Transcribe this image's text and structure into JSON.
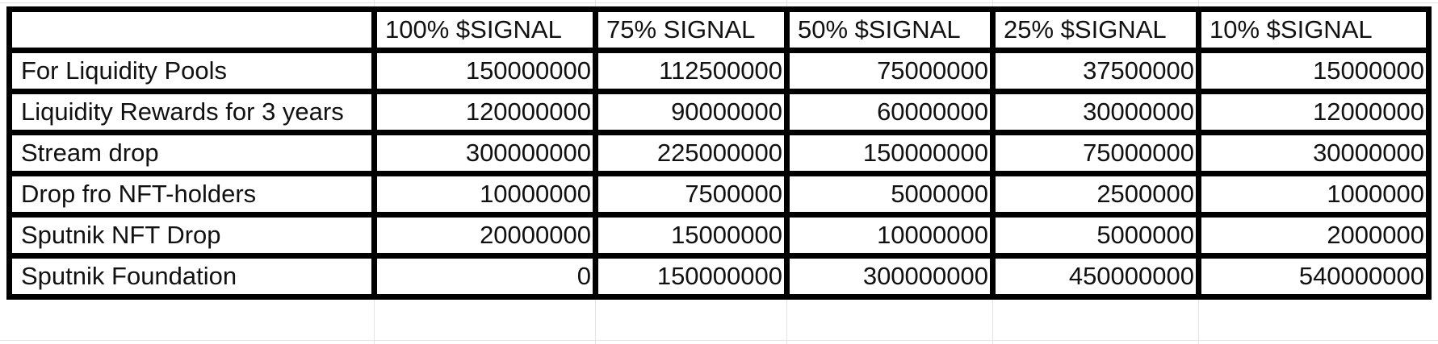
{
  "spreadsheet": {
    "column_headers": [
      "",
      "100% $SIGNAL",
      "75% SIGNAL",
      "50% $SIGNAL",
      "25% $SIGNAL",
      "10% $SIGNAL"
    ],
    "rows": [
      {
        "label": "For Liquidity Pools",
        "values": [
          "150000000",
          "112500000",
          "75000000",
          "37500000",
          "15000000"
        ]
      },
      {
        "label": "Liquidity Rewards for 3 years",
        "values": [
          "120000000",
          "90000000",
          "60000000",
          "30000000",
          "12000000"
        ]
      },
      {
        "label": "Stream drop",
        "values": [
          "300000000",
          "225000000",
          "150000000",
          "75000000",
          "30000000"
        ]
      },
      {
        "label": "Drop fro NFT-holders",
        "values": [
          "10000000",
          "7500000",
          "5000000",
          "2500000",
          "1000000"
        ]
      },
      {
        "label": "Sputnik NFT Drop",
        "values": [
          "20000000",
          "15000000",
          "10000000",
          "5000000",
          "2000000"
        ]
      },
      {
        "label": "Sputnik Foundation",
        "values": [
          "0",
          "150000000",
          "300000000",
          "450000000",
          "540000000"
        ]
      }
    ]
  }
}
